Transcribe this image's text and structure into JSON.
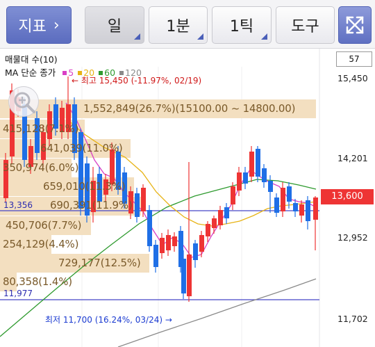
{
  "toolbar": {
    "indicator_label": "지표",
    "indicator_chevron": "›",
    "period_day": "일",
    "period_min": "1분",
    "period_tick": "1틱",
    "tools": "도구",
    "expand_icon": "expand-icon"
  },
  "legend": {
    "volume_line": "매물대 수(10)",
    "ma_title": "MA 단순 종가",
    "ma": [
      {
        "label": "5",
        "color": "#d93fc5"
      },
      {
        "label": "20",
        "color": "#e7b315"
      },
      {
        "label": "60",
        "color": "#2e9a2e"
      },
      {
        "label": "120",
        "color": "#8a8a8a"
      }
    ]
  },
  "scale": {
    "count_value": "57",
    "ticks": [
      "15,450",
      "14,201",
      "12,952",
      "11,702"
    ],
    "current_price": "13,600",
    "current_price_color": "#ee3434"
  },
  "annotations": {
    "high": "← 최고 15,450 (-11.97%, 02/19)",
    "low": "최저 11,700 (16.24%, 03/24) →",
    "line_upper": "13,356",
    "line_lower": "11,977",
    "high_color": "#d01818",
    "low_color": "#1b3bd1"
  },
  "volume_profile": [
    "1,552,849(26.7%)(15100.00 ~ 14800.00)",
    "415,128(7.1%)",
    "641,039(11.0%)",
    "350,974(6.0%)",
    "659,010(11.3%)",
    "690,391(11.9%)",
    "450,706(7.7%)",
    "254,129(4.4%)",
    "729,177(12.5%)",
    "80,358(1.4%)"
  ],
  "colors": {
    "up": "#ee3434",
    "down": "#1f6fe6",
    "bar": "#f1dcbd"
  }
}
